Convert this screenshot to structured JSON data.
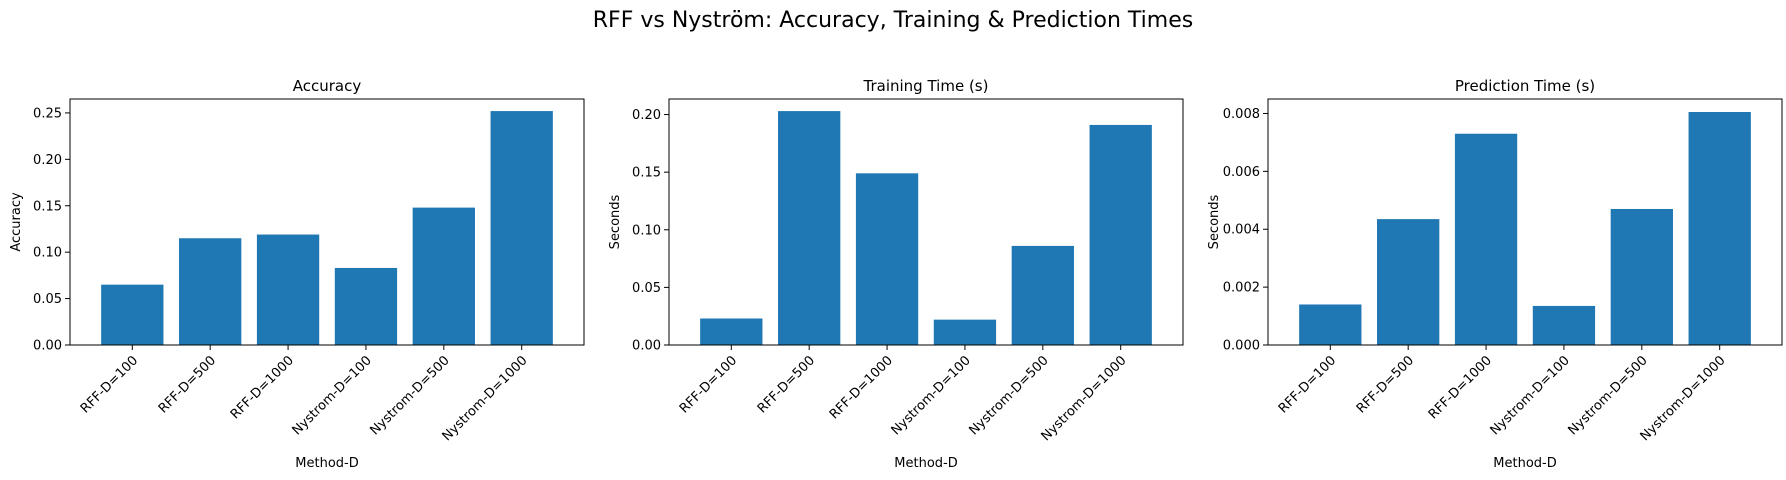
{
  "figure_title": "RFF vs Nyström: Accuracy, Training & Prediction Times",
  "bar_color": "#1f77b4",
  "chart_data": [
    {
      "type": "bar",
      "title": "Accuracy",
      "xlabel": "Method-D",
      "ylabel": "Accuracy",
      "categories": [
        "RFF-D=100",
        "RFF-D=500",
        "RFF-D=1000",
        "Nystrom-D=100",
        "Nystrom-D=500",
        "Nystrom-D=1000"
      ],
      "values": [
        0.065,
        0.115,
        0.119,
        0.083,
        0.148,
        0.252
      ],
      "ylim": [
        0,
        0.265
      ],
      "yticks": [
        0.0,
        0.05,
        0.1,
        0.15,
        0.2,
        0.25
      ],
      "ytick_labels": [
        "0.00",
        "0.05",
        "0.10",
        "0.15",
        "0.20",
        "0.25"
      ],
      "grid": false
    },
    {
      "type": "bar",
      "title": "Training Time (s)",
      "xlabel": "Method-D",
      "ylabel": "Seconds",
      "categories": [
        "RFF-D=100",
        "RFF-D=500",
        "RFF-D=1000",
        "Nystrom-D=100",
        "Nystrom-D=500",
        "Nystrom-D=1000"
      ],
      "values": [
        0.023,
        0.203,
        0.149,
        0.022,
        0.086,
        0.191
      ],
      "ylim": [
        0,
        0.2135
      ],
      "yticks": [
        0.0,
        0.05,
        0.1,
        0.15,
        0.2
      ],
      "ytick_labels": [
        "0.00",
        "0.05",
        "0.10",
        "0.15",
        "0.20"
      ],
      "grid": false
    },
    {
      "type": "bar",
      "title": "Prediction Time (s)",
      "xlabel": "Method-D",
      "ylabel": "Seconds",
      "categories": [
        "RFF-D=100",
        "RFF-D=500",
        "RFF-D=1000",
        "Nystrom-D=100",
        "Nystrom-D=500",
        "Nystrom-D=1000"
      ],
      "values": [
        0.0014,
        0.00435,
        0.0073,
        0.00135,
        0.0047,
        0.00805
      ],
      "ylim": [
        0,
        0.0085
      ],
      "yticks": [
        0.0,
        0.002,
        0.004,
        0.006,
        0.008
      ],
      "ytick_labels": [
        "0.000",
        "0.002",
        "0.004",
        "0.006",
        "0.008"
      ],
      "grid": false
    }
  ]
}
